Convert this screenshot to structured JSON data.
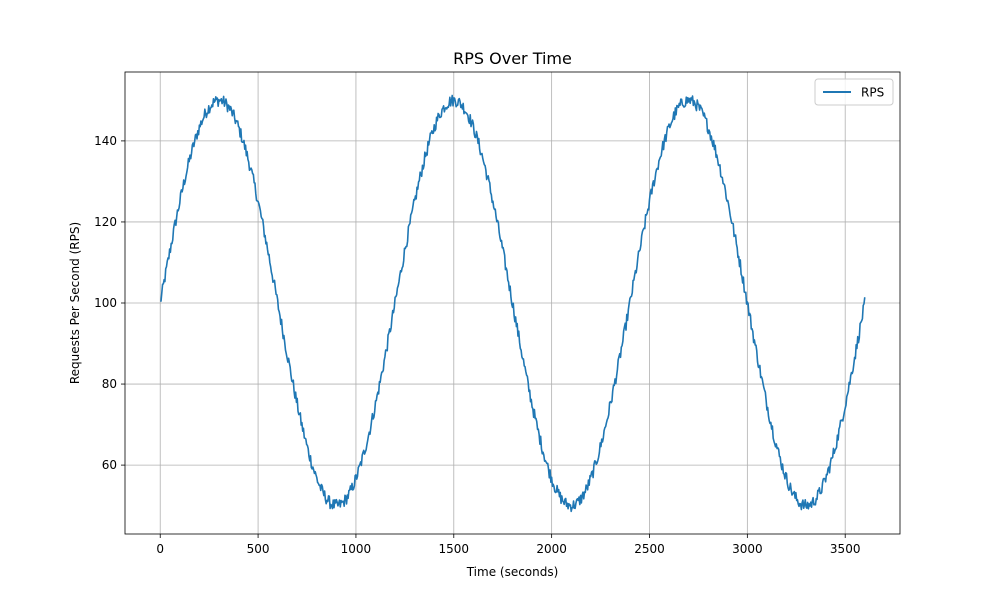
{
  "chart_data": {
    "type": "line",
    "title": "RPS Over Time",
    "xlabel": "Time (seconds)",
    "ylabel": "Requests Per Second (RPS)",
    "xlim": [
      -180,
      3780
    ],
    "ylim": [
      43,
      157
    ],
    "xticks": [
      0,
      500,
      1000,
      1500,
      2000,
      2500,
      3000,
      3500
    ],
    "xtick_labels": [
      "0",
      "500",
      "1000",
      "1500",
      "2000",
      "2500",
      "3000",
      "3500"
    ],
    "yticks": [
      60,
      80,
      100,
      120,
      140
    ],
    "ytick_labels": [
      "60",
      "80",
      "100",
      "120",
      "140"
    ],
    "grid": true,
    "legend_position": "top-right",
    "x_range": [
      0,
      3600
    ],
    "series": [
      {
        "name": "RPS",
        "color": "#1f77b4",
        "model": "sine",
        "baseline": 100,
        "amplitude": 50,
        "period": 1200,
        "noise_amplitude": 1.5,
        "sample_step": 4
      }
    ]
  }
}
